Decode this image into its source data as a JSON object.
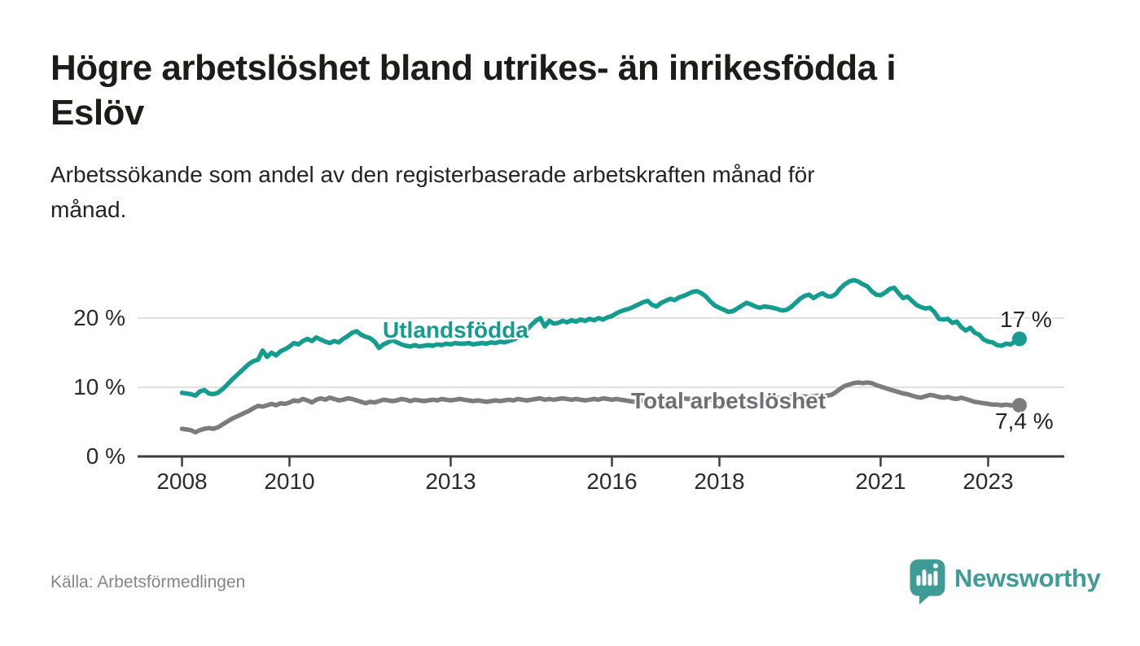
{
  "header": {
    "title": "Högre arbetslöshet bland utrikes- än inrikesfödda i\nEslöv",
    "subtitle": "Arbetssökande som andel av den registerbaserade arbetskraften månad för\nmånad."
  },
  "footer": {
    "source": "Källa: Arbetsförmedlingen",
    "brand": "Newsworthy"
  },
  "colors": {
    "background": "#ffffff",
    "title_text": "#1c1c1a",
    "axis_text": "#2b2b2b",
    "axis_line": "#3d3d3d",
    "gridline": "#d7d7d7",
    "series_utlandsfodda": "#169c8f",
    "series_total": "#7c7c7c",
    "total_label_text": "#6e6e73",
    "source_text": "#84848c",
    "brand_teal": "#3f9b95"
  },
  "chart_data": {
    "type": "line",
    "title": "Högre arbetslöshet bland utrikes- än inrikesfödda i Eslöv",
    "subtitle": "Arbetssökande som andel av den registerbaserade arbetskraften månad för månad.",
    "unit": "%",
    "frequency": "monthly",
    "start": "2008-01",
    "end": "2023-08",
    "grid": true,
    "legend": "inline-labels",
    "y_axis": {
      "ticks": [
        0,
        10,
        20
      ],
      "tick_labels": [
        "0 %",
        "10 %",
        "20 %"
      ],
      "range": [
        0,
        27
      ]
    },
    "x_axis": {
      "ticks": [
        2008,
        2010,
        2013,
        2016,
        2018,
        2021,
        2023
      ],
      "tick_labels": [
        "2008",
        "2010",
        "2013",
        "2016",
        "2018",
        "2021",
        "2023"
      ],
      "range_years": [
        2007.2,
        2024.4
      ]
    },
    "series": [
      {
        "name": "Utlandsfödda",
        "color": "#169c8f",
        "end_label": "17 %",
        "end_value": 17.0,
        "start_year": 2008,
        "values": [
          9.2,
          9.1,
          9.0,
          8.8,
          9.4,
          9.6,
          9.1,
          9.0,
          9.2,
          9.7,
          10.3,
          11.0,
          11.6,
          12.2,
          12.8,
          13.4,
          13.8,
          14.0,
          15.3,
          14.4,
          15.0,
          14.6,
          15.2,
          15.5,
          15.9,
          16.4,
          16.2,
          16.7,
          17.0,
          16.7,
          17.2,
          16.9,
          16.6,
          16.4,
          16.7,
          16.5,
          17.0,
          17.4,
          17.9,
          18.1,
          17.6,
          17.3,
          17.1,
          16.6,
          15.7,
          16.2,
          16.5,
          16.8,
          16.5,
          16.2,
          16.0,
          15.9,
          16.1,
          15.9,
          16.0,
          16.1,
          16.0,
          16.2,
          16.1,
          16.3,
          16.2,
          16.4,
          16.3,
          16.3,
          16.4,
          16.2,
          16.3,
          16.4,
          16.3,
          16.5,
          16.4,
          16.6,
          16.5,
          16.7,
          16.9,
          17.2,
          17.6,
          18.3,
          19.0,
          19.6,
          20.0,
          18.8,
          19.6,
          19.2,
          19.3,
          19.6,
          19.4,
          19.7,
          19.5,
          19.8,
          19.6,
          19.9,
          19.7,
          20.0,
          19.8,
          20.1,
          20.3,
          20.7,
          21.0,
          21.2,
          21.4,
          21.7,
          22.0,
          22.3,
          22.5,
          21.9,
          21.7,
          22.2,
          22.5,
          22.8,
          22.6,
          23.0,
          23.2,
          23.5,
          23.8,
          23.9,
          23.6,
          23.1,
          22.4,
          21.8,
          21.5,
          21.2,
          20.9,
          21.0,
          21.4,
          21.8,
          22.2,
          22.0,
          21.7,
          21.5,
          21.7,
          21.6,
          21.5,
          21.3,
          21.1,
          21.2,
          21.6,
          22.2,
          22.8,
          23.2,
          23.4,
          22.9,
          23.3,
          23.6,
          23.2,
          23.1,
          23.5,
          24.3,
          24.9,
          25.3,
          25.5,
          25.3,
          24.9,
          24.6,
          23.9,
          23.4,
          23.3,
          23.7,
          24.2,
          24.4,
          23.6,
          22.9,
          23.1,
          22.5,
          21.9,
          21.6,
          21.4,
          21.5,
          20.9,
          19.9,
          19.8,
          19.9,
          19.3,
          19.5,
          18.7,
          18.2,
          18.6,
          17.9,
          17.6,
          16.9,
          16.6,
          16.5,
          16.1,
          16.0,
          16.3,
          16.2,
          16.6,
          17.0
        ]
      },
      {
        "name": "Total arbetslöshet",
        "color": "#7c7c7c",
        "end_label": "7,4 %",
        "end_value": 7.4,
        "start_year": 2008,
        "values": [
          4.0,
          3.9,
          3.8,
          3.5,
          3.8,
          4.0,
          4.1,
          4.0,
          4.2,
          4.6,
          5.0,
          5.4,
          5.7,
          6.0,
          6.3,
          6.6,
          7.0,
          7.3,
          7.2,
          7.4,
          7.6,
          7.4,
          7.7,
          7.6,
          7.8,
          8.1,
          8.0,
          8.3,
          8.1,
          7.8,
          8.2,
          8.4,
          8.2,
          8.5,
          8.3,
          8.1,
          8.2,
          8.4,
          8.3,
          8.1,
          7.9,
          7.7,
          7.9,
          7.8,
          8.0,
          8.2,
          8.1,
          8.0,
          8.1,
          8.3,
          8.2,
          8.0,
          8.2,
          8.1,
          8.0,
          8.1,
          8.2,
          8.1,
          8.3,
          8.2,
          8.1,
          8.2,
          8.3,
          8.2,
          8.1,
          8.0,
          8.1,
          8.0,
          7.9,
          8.0,
          8.1,
          8.0,
          8.1,
          8.2,
          8.1,
          8.3,
          8.2,
          8.1,
          8.2,
          8.3,
          8.4,
          8.2,
          8.3,
          8.2,
          8.3,
          8.4,
          8.3,
          8.2,
          8.3,
          8.2,
          8.1,
          8.2,
          8.3,
          8.2,
          8.4,
          8.3,
          8.2,
          8.3,
          8.2,
          8.1,
          8.0,
          7.9,
          8.0,
          8.1,
          8.2,
          8.1,
          8.2,
          8.3,
          8.2,
          8.1,
          8.2,
          8.3,
          8.4,
          8.3,
          8.4,
          8.5,
          8.4,
          8.3,
          8.2,
          8.3,
          8.2,
          8.3,
          8.2,
          8.3,
          8.4,
          8.3,
          8.4,
          8.3,
          8.4,
          8.5,
          8.4,
          8.5,
          8.4,
          8.5,
          8.4,
          8.5,
          8.6,
          8.5,
          8.6,
          8.7,
          8.6,
          8.7,
          8.8,
          8.7,
          8.8,
          8.9,
          9.3,
          9.8,
          10.2,
          10.4,
          10.6,
          10.7,
          10.6,
          10.7,
          10.6,
          10.3,
          10.1,
          9.9,
          9.7,
          9.5,
          9.3,
          9.1,
          9.0,
          8.8,
          8.6,
          8.5,
          8.7,
          8.9,
          8.8,
          8.6,
          8.5,
          8.6,
          8.4,
          8.3,
          8.5,
          8.3,
          8.1,
          7.9,
          7.8,
          7.7,
          7.6,
          7.5,
          7.5,
          7.4,
          7.5,
          7.4,
          7.4,
          7.4
        ]
      }
    ]
  }
}
